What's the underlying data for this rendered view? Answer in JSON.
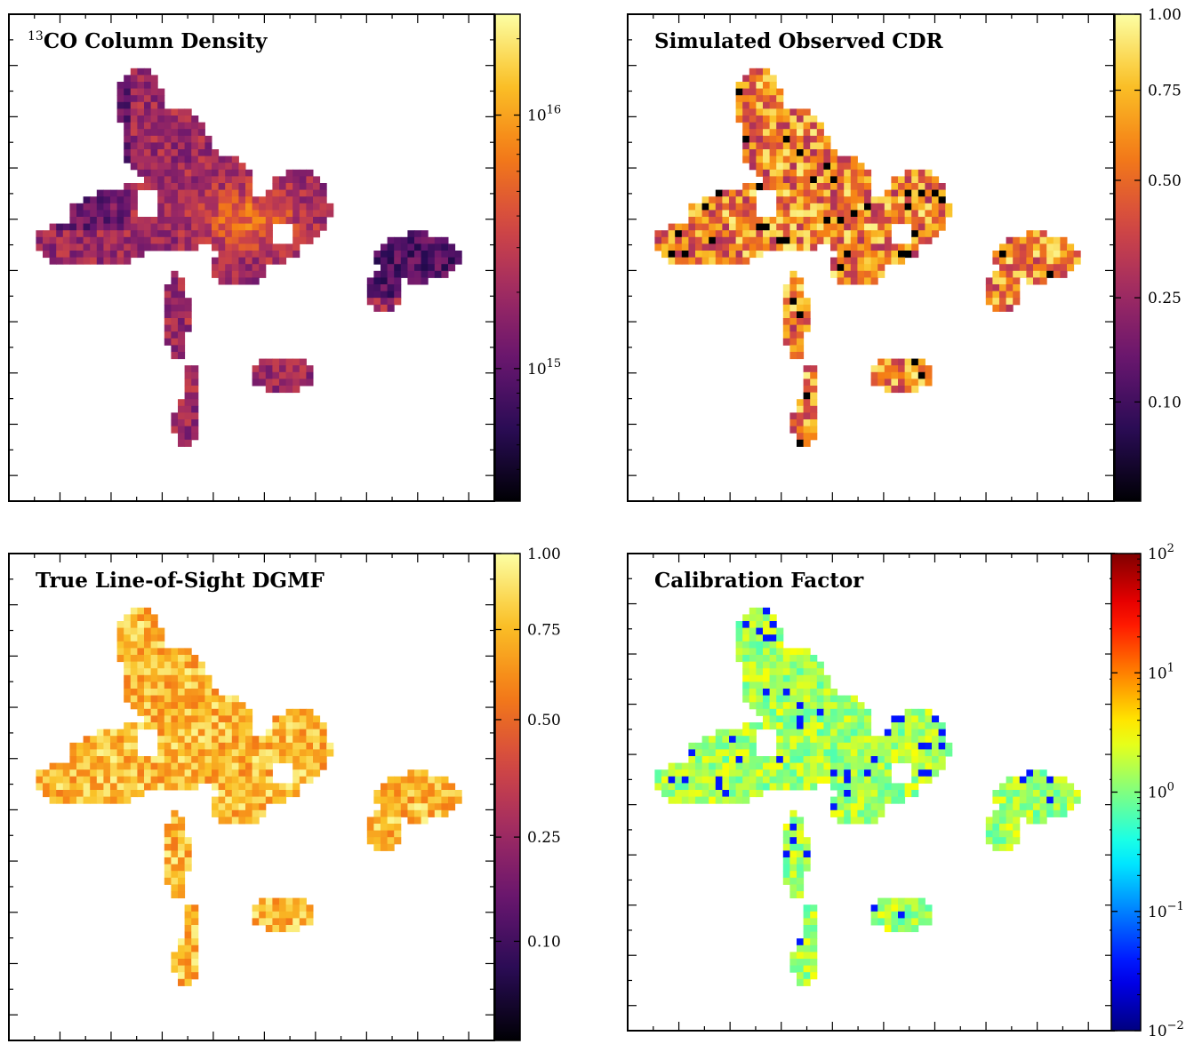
{
  "chart_data": [
    {
      "type": "heatmap",
      "title_sup": "13",
      "title": "CO Column Density",
      "colormap": "inferno",
      "scale": "log",
      "colorbar_range": [
        300000000000000,
        25000000000000000
      ],
      "colorbar_ticks": [
        {
          "value": 1000000000000000,
          "base": "10",
          "exp": "15"
        },
        {
          "value": 10000000000000000,
          "base": "10",
          "exp": "16"
        }
      ],
      "grid": false
    },
    {
      "type": "heatmap",
      "title": "Simulated Observed CDR",
      "colormap": "inferno",
      "scale": "sqrt",
      "colorbar_range": [
        0.02,
        1.0
      ],
      "colorbar_ticks": [
        {
          "value": 1.0,
          "label": "1.00"
        },
        {
          "value": 0.75,
          "label": "0.75"
        },
        {
          "value": 0.5,
          "label": "0.50"
        },
        {
          "value": 0.25,
          "label": "0.25"
        },
        {
          "value": 0.1,
          "label": "0.10"
        }
      ],
      "grid": false
    },
    {
      "type": "heatmap",
      "title": "True Line-of-Sight DGMF",
      "colormap": "inferno",
      "scale": "sqrt",
      "colorbar_range": [
        0.02,
        1.0
      ],
      "colorbar_ticks": [
        {
          "value": 1.0,
          "label": "1.00"
        },
        {
          "value": 0.75,
          "label": "0.75"
        },
        {
          "value": 0.5,
          "label": "0.50"
        },
        {
          "value": 0.25,
          "label": "0.25"
        },
        {
          "value": 0.1,
          "label": "0.10"
        }
      ],
      "grid": false
    },
    {
      "type": "heatmap",
      "title": "Calibration Factor",
      "colormap": "jet",
      "scale": "log",
      "colorbar_range": [
        0.01,
        100
      ],
      "colorbar_ticks": [
        {
          "value": 100,
          "base": "10",
          "exp": "2"
        },
        {
          "value": 10,
          "base": "10",
          "exp": "1"
        },
        {
          "value": 1,
          "base": "10",
          "exp": "0"
        },
        {
          "value": 0.1,
          "base": "10",
          "exp": "−1"
        },
        {
          "value": 0.01,
          "base": "10",
          "exp": "−2"
        }
      ],
      "grid": false
    }
  ]
}
